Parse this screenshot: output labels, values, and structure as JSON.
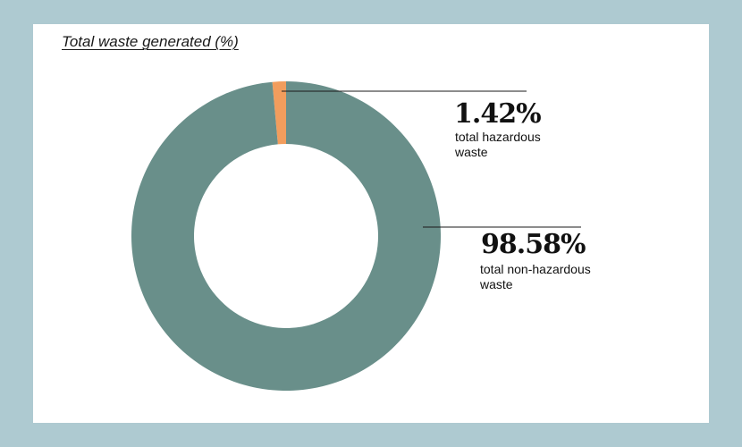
{
  "colors": {
    "background": "#aecad1",
    "card": "#ffffff",
    "non_hazardous": "#698f8a",
    "hazardous": "#f29d5d",
    "leader_line": "#1a1a1a"
  },
  "chart_data": {
    "type": "pie",
    "variant": "donut",
    "title": "Total waste generated (%)",
    "unit": "%",
    "slices": [
      {
        "name": "total hazardous waste",
        "value": 1.42,
        "label": "1.42%",
        "desc_lines": [
          "total hazardous",
          "waste"
        ],
        "color": "#f29d5d"
      },
      {
        "name": "total non-hazardous waste",
        "value": 98.58,
        "label": "98.58%",
        "desc_lines": [
          "total non-hazardous",
          "waste"
        ],
        "color": "#698f8a"
      }
    ]
  }
}
